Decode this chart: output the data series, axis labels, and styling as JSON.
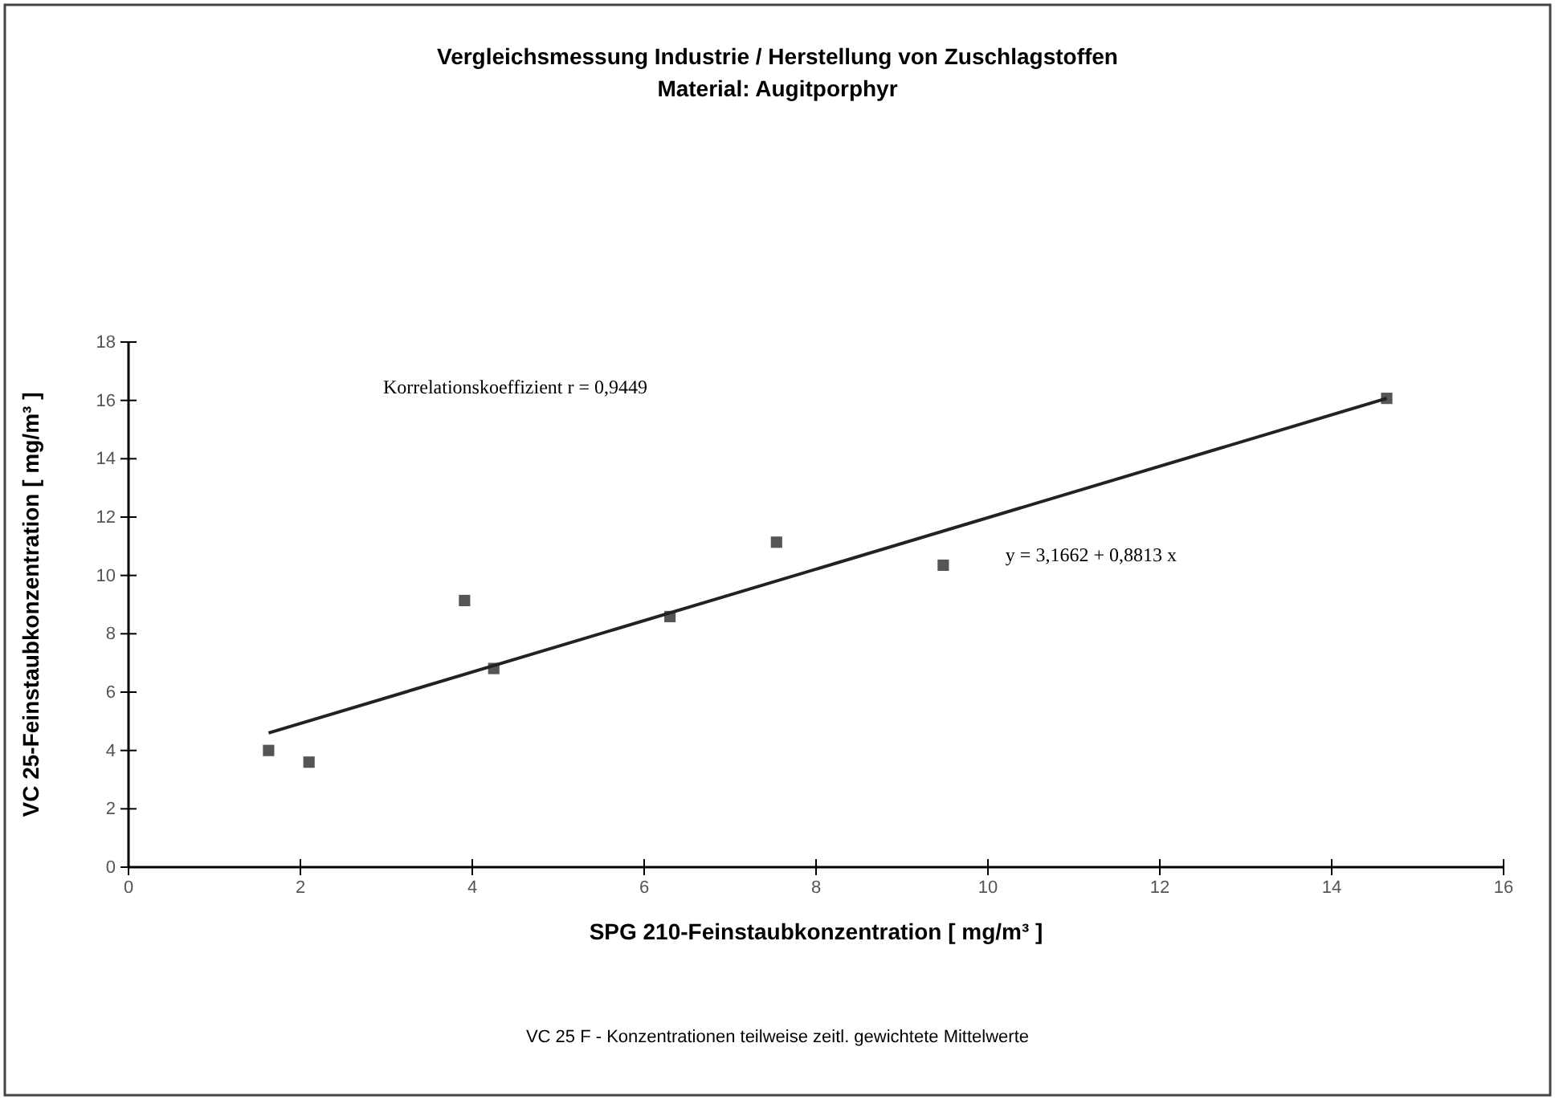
{
  "chart_data": {
    "type": "scatter",
    "title": "Vergleichsmessung Industrie / Herstellung von Zuschlagstoffen",
    "subtitle": "Material: Augitporphyr",
    "xlabel": "SPG 210-Feinstaubkonzentration [ mg/m³ ]",
    "ylabel": "VC 25-Feinstaubkonzentration [ mg/m³ ]",
    "series": [
      {
        "marker": "square",
        "color": "#555555",
        "x": [
          1.63,
          2.1,
          3.91,
          4.25,
          6.3,
          7.54,
          9.48,
          14.64
        ],
        "values": [
          4.0,
          3.6,
          9.14,
          6.81,
          8.59,
          11.14,
          10.35,
          16.07
        ]
      },
      {
        "type": "line",
        "marker": "none",
        "color": "#222222",
        "x": [
          1.63,
          14.64
        ],
        "values": [
          4.6,
          16.07
        ]
      }
    ],
    "xlim": [
      0,
      16
    ],
    "ylim": [
      0,
      18
    ],
    "xticks": [
      0,
      2,
      4,
      6,
      8,
      10,
      12,
      14,
      16
    ],
    "yticks": [
      0,
      2,
      4,
      6,
      8,
      10,
      12,
      14,
      16,
      18
    ],
    "grid": false,
    "annotations": [
      "Korrelationskoeffizient r = 0,9449",
      "y = 3,1662 + 0,8813 x",
      "VC 25 F - Konzentrationen teilweise zeitl. gewichtete Mittelwerte"
    ]
  }
}
